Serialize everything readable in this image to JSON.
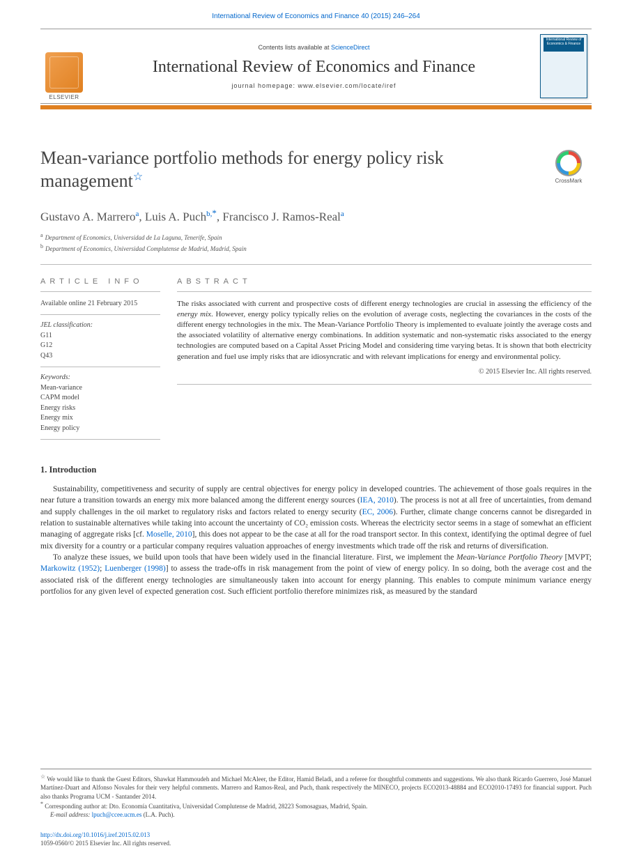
{
  "header": {
    "citation": "International Review of Economics and Finance 40 (2015) 246–264",
    "contents_line_prefix": "Contents lists available at ",
    "contents_link": "ScienceDirect",
    "journal_name": "International Review of Economics and Finance",
    "homepage_line": "journal homepage: www.elsevier.com/locate/iref",
    "publisher_name": "ELSEVIER",
    "cover_title": "International Review of Economics & Finance"
  },
  "crossmark": {
    "label": "CrossMark"
  },
  "title": {
    "text": "Mean-variance portfolio methods for energy policy risk management",
    "note_mark": "☆"
  },
  "authors": {
    "list": "Gustavo A. Marrero",
    "a1_aff": "a",
    "sep1": ", ",
    "a2": "Luis A. Puch",
    "a2_aff": "b,",
    "a2_corr": "*",
    "sep2": ", ",
    "a3": "Francisco J. Ramos-Real",
    "a3_aff": "a"
  },
  "affiliations": {
    "a": "Department of Economics, Universidad de La Laguna, Tenerife, Spain",
    "b": "Department of Economics, Universidad Complutense de Madrid, Madrid, Spain"
  },
  "info": {
    "label": "article info",
    "available": "Available online 21 February 2015",
    "jel_heading": "JEL classification:",
    "jel": [
      "G11",
      "G12",
      "Q43"
    ],
    "kw_heading": "Keywords:",
    "keywords": [
      "Mean-variance",
      "CAPM model",
      "Energy risks",
      "Energy mix",
      "Energy policy"
    ]
  },
  "abstract": {
    "label": "abstract",
    "text_pre": "The risks associated with current and prospective costs of different energy technologies are crucial in assessing the efficiency of the ",
    "em1": "energy mix",
    "text_post": ". However, energy policy typically relies on the evolution of average costs, neglecting the covariances in the costs of the different energy technologies in the mix. The Mean-Variance Portfolio Theory is implemented to evaluate jointly the average costs and the associated volatility of alternative energy combinations. In addition systematic and non-systematic risks associated to the energy technologies are computed based on a Capital Asset Pricing Model and considering time varying betas. It is shown that both electricity generation and fuel use imply risks that are idiosyncratic and with relevant implications for energy and environmental policy.",
    "copyright": "© 2015 Elsevier Inc. All rights reserved."
  },
  "body": {
    "heading": "1. Introduction",
    "p1_a": "Sustainability, competitiveness and security of supply are central objectives for energy policy in developed countries. The achievement of those goals requires in the near future a transition towards an energy mix more balanced among the different energy sources (",
    "p1_link1": "IEA, 2010",
    "p1_b": "). The process is not at all free of uncertainties, from demand and supply challenges in the oil market to regulatory risks and factors related to energy security (",
    "p1_link2": "EC, 2006",
    "p1_c": "). Further, climate change concerns cannot be disregarded in relation to sustainable alternatives while taking into account the uncertainty of CO₂ emission costs. Whereas the electricity sector seems in a stage of somewhat an efficient managing of aggregate risks [cf. ",
    "p1_link3": "Moselle, 2010",
    "p1_d": "], this does not appear to be the case at all for the road transport sector. In this context, identifying the optimal degree of fuel mix diversity for a country or a particular company requires valuation approaches of energy investments which trade off the risk and returns of diversification.",
    "p2_a": "To analyze these issues, we build upon tools that have been widely used in the financial literature. First, we implement the ",
    "p2_em": "Mean-Variance Portfolio Theory",
    "p2_b": " [MVPT; ",
    "p2_link1": "Markowitz (1952)",
    "p2_c": "; ",
    "p2_link2": "Luenberger (1998)",
    "p2_d": "] to assess the trade-offs in risk management from the point of view of energy policy. In so doing, both the average cost and the associated risk of the different energy technologies are simultaneously taken into account for energy planning. This enables to compute minimum variance energy portfolios for any given level of expected generation cost. Such efficient portfolio therefore minimizes risk, as measured by the standard"
  },
  "footnotes": {
    "star": "☆",
    "star_text": " We would like to thank the Guest Editors, Shawkat Hammoudeh and Michael McAleer, the Editor, Hamid Beladi, and a referee for thoughtful comments and suggestions. We also thank Ricardo Guerrero, José Manuel Martínez-Duart and Alfonso Novales for their very helpful comments. Marrero and Ramos-Real, and Puch, thank respectively the MINECO, projects ECO2013-48884 and ECO2010-17493 for financial support. Puch also thanks Programa UCM - Santander 2014.",
    "corr": "*",
    "corr_text": " Corresponding author at: Dto. Economía Cuantitativa, Universidad Complutense de Madrid, 28223 Somosaguas, Madrid, Spain.",
    "email_label": "E-mail address: ",
    "email": "lpuch@ccee.ucm.es",
    "email_who": " (L.A. Puch)."
  },
  "footer": {
    "doi": "http://dx.doi.org/10.1016/j.iref.2015.02.013",
    "issn_line": "1059-0560/© 2015 Elsevier Inc. All rights reserved."
  },
  "colors": {
    "link": "#0066cc",
    "orange": "#e08020",
    "rule": "#bbbbbb",
    "text": "#333333"
  }
}
